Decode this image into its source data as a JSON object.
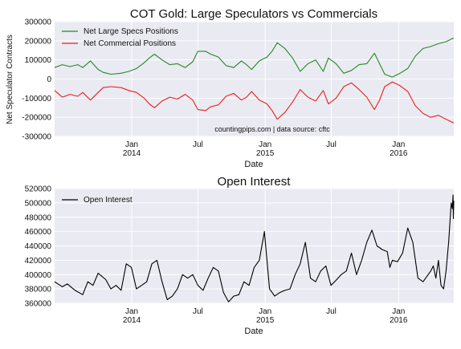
{
  "chart_data": [
    {
      "type": "line",
      "title": "COT Gold: Large Speculators vs Commercials",
      "xlabel": "Date",
      "ylabel": "Net Speculator Contracts",
      "ylim": [
        -300000,
        300000
      ],
      "yticks": [
        "300000",
        "200000",
        "100000",
        "0",
        "-100000",
        "-200000",
        "-300000"
      ],
      "xticks": [
        {
          "month": "Jan",
          "year": "2014"
        },
        {
          "month": "Jul",
          "year": ""
        },
        {
          "month": "Jan",
          "year": "2015"
        },
        {
          "month": "Jul",
          "year": ""
        },
        {
          "month": "Jan",
          "year": "2016"
        }
      ],
      "annotation": "countingpips.com | data source: cftc",
      "legend_position": "upper-left",
      "grid": true,
      "x_range": [
        "2013-06-04",
        "2016-05-31"
      ],
      "series": [
        {
          "name": "Net Large Specs Positions",
          "color": "#228B22",
          "points": [
            [
              "2013-06-04",
              60000
            ],
            [
              "2013-06-25",
              75000
            ],
            [
              "2013-07-16",
              65000
            ],
            [
              "2013-08-06",
              75000
            ],
            [
              "2013-08-20",
              60000
            ],
            [
              "2013-09-10",
              95000
            ],
            [
              "2013-10-01",
              50000
            ],
            [
              "2013-10-15",
              35000
            ],
            [
              "2013-11-05",
              25000
            ],
            [
              "2013-12-03",
              30000
            ],
            [
              "2013-12-24",
              40000
            ],
            [
              "2014-01-14",
              55000
            ],
            [
              "2014-02-04",
              85000
            ],
            [
              "2014-02-18",
              110000
            ],
            [
              "2014-03-04",
              130000
            ],
            [
              "2014-03-25",
              100000
            ],
            [
              "2014-04-15",
              75000
            ],
            [
              "2014-05-06",
              80000
            ],
            [
              "2014-05-27",
              60000
            ],
            [
              "2014-06-17",
              90000
            ],
            [
              "2014-07-01",
              145000
            ],
            [
              "2014-07-22",
              145000
            ],
            [
              "2014-08-05",
              130000
            ],
            [
              "2014-08-26",
              115000
            ],
            [
              "2014-09-16",
              70000
            ],
            [
              "2014-10-07",
              60000
            ],
            [
              "2014-10-28",
              95000
            ],
            [
              "2014-11-11",
              75000
            ],
            [
              "2014-11-25",
              50000
            ],
            [
              "2014-12-16",
              95000
            ],
            [
              "2015-01-06",
              115000
            ],
            [
              "2015-01-20",
              145000
            ],
            [
              "2015-02-03",
              190000
            ],
            [
              "2015-02-24",
              160000
            ],
            [
              "2015-03-17",
              110000
            ],
            [
              "2015-04-07",
              40000
            ],
            [
              "2015-04-28",
              80000
            ],
            [
              "2015-05-19",
              100000
            ],
            [
              "2015-06-09",
              40000
            ],
            [
              "2015-06-23",
              110000
            ],
            [
              "2015-07-14",
              80000
            ],
            [
              "2015-08-04",
              30000
            ],
            [
              "2015-08-25",
              45000
            ],
            [
              "2015-09-15",
              75000
            ],
            [
              "2015-10-06",
              80000
            ],
            [
              "2015-10-27",
              135000
            ],
            [
              "2015-11-10",
              80000
            ],
            [
              "2015-11-24",
              25000
            ],
            [
              "2015-12-15",
              10000
            ],
            [
              "2016-01-05",
              30000
            ],
            [
              "2016-01-26",
              55000
            ],
            [
              "2016-02-16",
              120000
            ],
            [
              "2016-03-08",
              160000
            ],
            [
              "2016-03-29",
              170000
            ],
            [
              "2016-04-19",
              185000
            ],
            [
              "2016-05-10",
              195000
            ],
            [
              "2016-05-31",
              215000
            ]
          ]
        },
        {
          "name": "Net Commercial Positions",
          "color": "#E8201C",
          "points": [
            [
              "2013-06-04",
              -60000
            ],
            [
              "2013-06-25",
              -95000
            ],
            [
              "2013-07-16",
              -80000
            ],
            [
              "2013-08-06",
              -90000
            ],
            [
              "2013-08-20",
              -70000
            ],
            [
              "2013-09-10",
              -110000
            ],
            [
              "2013-10-01",
              -70000
            ],
            [
              "2013-10-15",
              -45000
            ],
            [
              "2013-11-05",
              -40000
            ],
            [
              "2013-12-03",
              -45000
            ],
            [
              "2013-12-24",
              -60000
            ],
            [
              "2014-01-14",
              -70000
            ],
            [
              "2014-02-04",
              -100000
            ],
            [
              "2014-02-18",
              -130000
            ],
            [
              "2014-03-04",
              -150000
            ],
            [
              "2014-03-25",
              -115000
            ],
            [
              "2014-04-15",
              -95000
            ],
            [
              "2014-05-06",
              -105000
            ],
            [
              "2014-05-27",
              -80000
            ],
            [
              "2014-06-17",
              -110000
            ],
            [
              "2014-07-01",
              -160000
            ],
            [
              "2014-07-22",
              -165000
            ],
            [
              "2014-08-05",
              -145000
            ],
            [
              "2014-08-26",
              -135000
            ],
            [
              "2014-09-16",
              -90000
            ],
            [
              "2014-10-07",
              -75000
            ],
            [
              "2014-10-28",
              -110000
            ],
            [
              "2014-11-11",
              -95000
            ],
            [
              "2014-11-25",
              -65000
            ],
            [
              "2014-12-16",
              -110000
            ],
            [
              "2015-01-06",
              -130000
            ],
            [
              "2015-01-20",
              -165000
            ],
            [
              "2015-02-03",
              -210000
            ],
            [
              "2015-02-24",
              -175000
            ],
            [
              "2015-03-17",
              -120000
            ],
            [
              "2015-04-07",
              -55000
            ],
            [
              "2015-04-28",
              -95000
            ],
            [
              "2015-05-19",
              -115000
            ],
            [
              "2015-06-09",
              -60000
            ],
            [
              "2015-06-23",
              -130000
            ],
            [
              "2015-07-14",
              -100000
            ],
            [
              "2015-08-04",
              -40000
            ],
            [
              "2015-08-25",
              -20000
            ],
            [
              "2015-09-15",
              -55000
            ],
            [
              "2015-10-06",
              -95000
            ],
            [
              "2015-10-27",
              -160000
            ],
            [
              "2015-11-10",
              -110000
            ],
            [
              "2015-11-24",
              -40000
            ],
            [
              "2015-12-15",
              -15000
            ],
            [
              "2016-01-05",
              -35000
            ],
            [
              "2016-01-26",
              -65000
            ],
            [
              "2016-02-16",
              -140000
            ],
            [
              "2016-03-08",
              -180000
            ],
            [
              "2016-03-29",
              -200000
            ],
            [
              "2016-04-19",
              -190000
            ],
            [
              "2016-05-10",
              -210000
            ],
            [
              "2016-05-31",
              -230000
            ]
          ]
        }
      ]
    },
    {
      "type": "line",
      "title": "Open Interest",
      "xlabel": "Date",
      "ylabel": "",
      "ylim": [
        360000,
        520000
      ],
      "yticks": [
        "520000",
        "500000",
        "480000",
        "460000",
        "440000",
        "420000",
        "400000",
        "380000",
        "360000"
      ],
      "xticks": [
        {
          "month": "Jan",
          "year": "2014"
        },
        {
          "month": "Jul",
          "year": ""
        },
        {
          "month": "Jan",
          "year": "2015"
        },
        {
          "month": "Jul",
          "year": ""
        },
        {
          "month": "Jan",
          "year": "2016"
        }
      ],
      "legend_position": "upper-left",
      "grid": true,
      "x_range": [
        "2013-06-04",
        "2016-05-31"
      ],
      "series": [
        {
          "name": "Open Interest",
          "color": "#000000",
          "points": [
            [
              "2013-06-04",
              390000
            ],
            [
              "2013-06-25",
              383000
            ],
            [
              "2013-07-09",
              387000
            ],
            [
              "2013-07-30",
              378000
            ],
            [
              "2013-08-20",
              372000
            ],
            [
              "2013-09-03",
              390000
            ],
            [
              "2013-09-17",
              385000
            ],
            [
              "2013-10-01",
              402000
            ],
            [
              "2013-10-22",
              393000
            ],
            [
              "2013-11-05",
              380000
            ],
            [
              "2013-11-19",
              385000
            ],
            [
              "2013-12-03",
              378000
            ],
            [
              "2013-12-17",
              415000
            ],
            [
              "2013-12-31",
              410000
            ],
            [
              "2014-01-14",
              380000
            ],
            [
              "2014-01-28",
              385000
            ],
            [
              "2014-02-11",
              390000
            ],
            [
              "2014-02-25",
              415000
            ],
            [
              "2014-03-11",
              420000
            ],
            [
              "2014-03-25",
              390000
            ],
            [
              "2014-04-08",
              365000
            ],
            [
              "2014-04-22",
              370000
            ],
            [
              "2014-05-06",
              380000
            ],
            [
              "2014-05-20",
              400000
            ],
            [
              "2014-06-03",
              395000
            ],
            [
              "2014-06-17",
              400000
            ],
            [
              "2014-07-01",
              385000
            ],
            [
              "2014-07-15",
              378000
            ],
            [
              "2014-07-29",
              395000
            ],
            [
              "2014-08-12",
              410000
            ],
            [
              "2014-08-26",
              405000
            ],
            [
              "2014-09-09",
              375000
            ],
            [
              "2014-09-23",
              362000
            ],
            [
              "2014-10-07",
              370000
            ],
            [
              "2014-10-21",
              372000
            ],
            [
              "2014-11-04",
              390000
            ],
            [
              "2014-11-18",
              385000
            ],
            [
              "2014-12-02",
              410000
            ],
            [
              "2014-12-16",
              420000
            ],
            [
              "2014-12-30",
              460000
            ],
            [
              "2015-01-13",
              380000
            ],
            [
              "2015-01-27",
              370000
            ],
            [
              "2015-02-10",
              375000
            ],
            [
              "2015-02-24",
              378000
            ],
            [
              "2015-03-10",
              380000
            ],
            [
              "2015-03-24",
              400000
            ],
            [
              "2015-04-07",
              415000
            ],
            [
              "2015-04-21",
              445000
            ],
            [
              "2015-05-05",
              395000
            ],
            [
              "2015-05-19",
              390000
            ],
            [
              "2015-06-02",
              405000
            ],
            [
              "2015-06-16",
              412000
            ],
            [
              "2015-06-30",
              385000
            ],
            [
              "2015-07-14",
              392000
            ],
            [
              "2015-07-28",
              400000
            ],
            [
              "2015-08-11",
              405000
            ],
            [
              "2015-08-25",
              430000
            ],
            [
              "2015-09-08",
              400000
            ],
            [
              "2015-09-22",
              420000
            ],
            [
              "2015-10-06",
              445000
            ],
            [
              "2015-10-20",
              462000
            ],
            [
              "2015-11-03",
              440000
            ],
            [
              "2015-11-17",
              435000
            ],
            [
              "2015-12-01",
              432000
            ],
            [
              "2015-12-08",
              410000
            ],
            [
              "2015-12-15",
              420000
            ],
            [
              "2015-12-29",
              418000
            ],
            [
              "2016-01-12",
              430000
            ],
            [
              "2016-01-26",
              465000
            ],
            [
              "2016-02-09",
              445000
            ],
            [
              "2016-02-23",
              395000
            ],
            [
              "2016-03-08",
              390000
            ],
            [
              "2016-03-15",
              395000
            ],
            [
              "2016-03-29",
              405000
            ],
            [
              "2016-04-05",
              412000
            ],
            [
              "2016-04-12",
              395000
            ],
            [
              "2016-04-19",
              420000
            ],
            [
              "2016-04-26",
              385000
            ],
            [
              "2016-05-03",
              380000
            ],
            [
              "2016-05-10",
              405000
            ],
            [
              "2016-05-17",
              445000
            ],
            [
              "2016-05-24",
              500000
            ],
            [
              "2016-05-27",
              492000
            ],
            [
              "2016-05-29",
              511000
            ],
            [
              "2016-05-30",
              478000
            ],
            [
              "2016-05-31",
              503000
            ]
          ]
        }
      ]
    }
  ]
}
